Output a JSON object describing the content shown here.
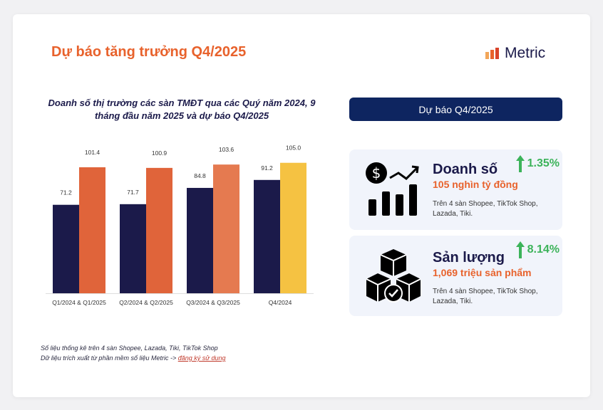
{
  "header": {
    "title": "Dự báo tăng trưởng Q4/2025",
    "logo_text": "Metric"
  },
  "chart_data": {
    "type": "bar",
    "title": "Doanh số thị trường các sàn TMĐT qua các Quý năm 2024, 9 tháng đầu năm 2025 và dự báo Q4/2025",
    "categories": [
      "Q1/2024 & Q1/2025",
      "Q2/2024 & Q2/2025",
      "Q3/2024 & Q3/2025",
      "Q4/2024"
    ],
    "series": [
      {
        "values": [
          71.2,
          71.7,
          84.8,
          91.2
        ],
        "color": "#1B1A4A"
      },
      {
        "values": [
          101.4,
          100.9,
          103.6,
          105.0
        ],
        "colors": [
          "#E0643A",
          "#E0643A",
          "#E57A50",
          "#F5C242"
        ]
      }
    ],
    "ylim": [
      0,
      110
    ],
    "grid": false,
    "xlabel": "",
    "ylabel": ""
  },
  "notes": {
    "line1": "Số liệu thống kê trên 4 sàn Shopee, Lazada, Tiki, TikTok Shop",
    "line2": "Dữ liệu trích xuất từ phần mềm số liệu Metric -> ",
    "link": "đăng ký sử dụng"
  },
  "panel": {
    "header": "Dự báo Q4/2025",
    "kpis": [
      {
        "name": "Doanh số",
        "value": "105 nghìn tỷ đồng",
        "desc": "Trên 4 sàn Shopee, TikTok Shop, Lazada, Tiki.",
        "change": "1.35%",
        "icon": "revenue-growth-icon"
      },
      {
        "name": "Sản lượng",
        "value": "1,069 triệu sản phẩm",
        "desc": "Trên 4 sàn Shopee, TikTok Shop, Lazada, Tiki.",
        "change": "8.14%",
        "icon": "boxes-icon"
      }
    ]
  },
  "colors": {
    "accent": "#E8622C",
    "navy": "#1B1A4A",
    "panel_header": "#0E2560",
    "positive": "#3CB35A"
  }
}
